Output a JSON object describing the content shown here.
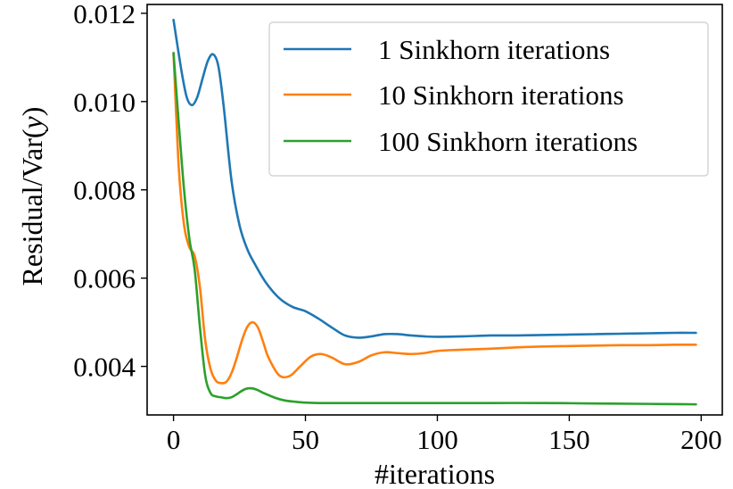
{
  "chart_data": {
    "type": "line",
    "title": "",
    "xlabel": "#iterations",
    "ylabel": "Residual/Var(y)",
    "ylabel_parts": [
      "Residual/Var(",
      "y",
      ")"
    ],
    "xlim": [
      -10,
      208
    ],
    "ylim": [
      0.0029,
      0.0122
    ],
    "xticks": [
      0,
      50,
      100,
      150,
      200
    ],
    "xtick_labels": [
      "0",
      "50",
      "100",
      "150",
      "200"
    ],
    "yticks": [
      0.004,
      0.006,
      0.008,
      0.01,
      0.012
    ],
    "ytick_labels": [
      "0.004",
      "0.006",
      "0.008",
      "0.010",
      "0.012"
    ],
    "grid": false,
    "legend_position": "top-right",
    "series": [
      {
        "name": "1 Sinkhorn iterations",
        "color": "#1f77b4",
        "x": [
          0,
          3,
          5,
          7,
          9,
          11,
          13,
          15,
          17,
          19,
          22,
          25,
          28,
          31,
          35,
          40,
          45,
          50,
          55,
          60,
          65,
          70,
          75,
          80,
          85,
          90,
          95,
          100,
          110,
          120,
          130,
          140,
          150,
          160,
          170,
          180,
          190,
          198
        ],
        "y": [
          0.01185,
          0.0107,
          0.0101,
          0.00992,
          0.0101,
          0.01052,
          0.01092,
          0.01107,
          0.0108,
          0.0099,
          0.0082,
          0.0072,
          0.00665,
          0.0063,
          0.0059,
          0.00555,
          0.00535,
          0.00525,
          0.00508,
          0.00488,
          0.0047,
          0.00465,
          0.00468,
          0.00473,
          0.00473,
          0.0047,
          0.00468,
          0.00467,
          0.00468,
          0.0047,
          0.0047,
          0.00471,
          0.00472,
          0.00473,
          0.00474,
          0.00475,
          0.00476,
          0.00476
        ]
      },
      {
        "name": "10 Sinkhorn iterations",
        "color": "#ff7f0e",
        "x": [
          0,
          2,
          4,
          6,
          8,
          10,
          12,
          14,
          16,
          18,
          20,
          22,
          24,
          26,
          28,
          30,
          32,
          34,
          36,
          40,
          44,
          48,
          52,
          56,
          60,
          65,
          70,
          75,
          80,
          85,
          90,
          95,
          100,
          110,
          120,
          130,
          140,
          150,
          160,
          170,
          180,
          190,
          198
        ],
        "y": [
          0.0111,
          0.0085,
          0.0072,
          0.0067,
          0.0065,
          0.0058,
          0.0046,
          0.00395,
          0.00368,
          0.00362,
          0.00365,
          0.00385,
          0.0042,
          0.0046,
          0.0049,
          0.005,
          0.00488,
          0.00455,
          0.0042,
          0.0038,
          0.00378,
          0.004,
          0.00422,
          0.00428,
          0.0042,
          0.00405,
          0.0041,
          0.00425,
          0.00432,
          0.0043,
          0.00428,
          0.0043,
          0.00435,
          0.00438,
          0.0044,
          0.00443,
          0.00445,
          0.00446,
          0.00447,
          0.00448,
          0.00448,
          0.00449,
          0.00449
        ]
      },
      {
        "name": "100 Sinkhorn iterations",
        "color": "#2ca02c",
        "x": [
          0,
          2,
          4,
          6,
          8,
          10,
          12,
          14,
          16,
          18,
          20,
          22,
          24,
          26,
          28,
          30,
          32,
          34,
          38,
          42,
          46,
          50,
          55,
          60,
          70,
          80,
          90,
          100,
          120,
          140,
          160,
          180,
          198
        ],
        "y": [
          0.0111,
          0.0095,
          0.008,
          0.0069,
          0.0062,
          0.0049,
          0.0038,
          0.0034,
          0.00332,
          0.0033,
          0.00328,
          0.0033,
          0.00337,
          0.00345,
          0.0035,
          0.0035,
          0.00346,
          0.0034,
          0.0033,
          0.00323,
          0.0032,
          0.00318,
          0.00317,
          0.00317,
          0.00317,
          0.00317,
          0.00317,
          0.00317,
          0.00317,
          0.00317,
          0.00316,
          0.00315,
          0.00314
        ]
      }
    ]
  }
}
